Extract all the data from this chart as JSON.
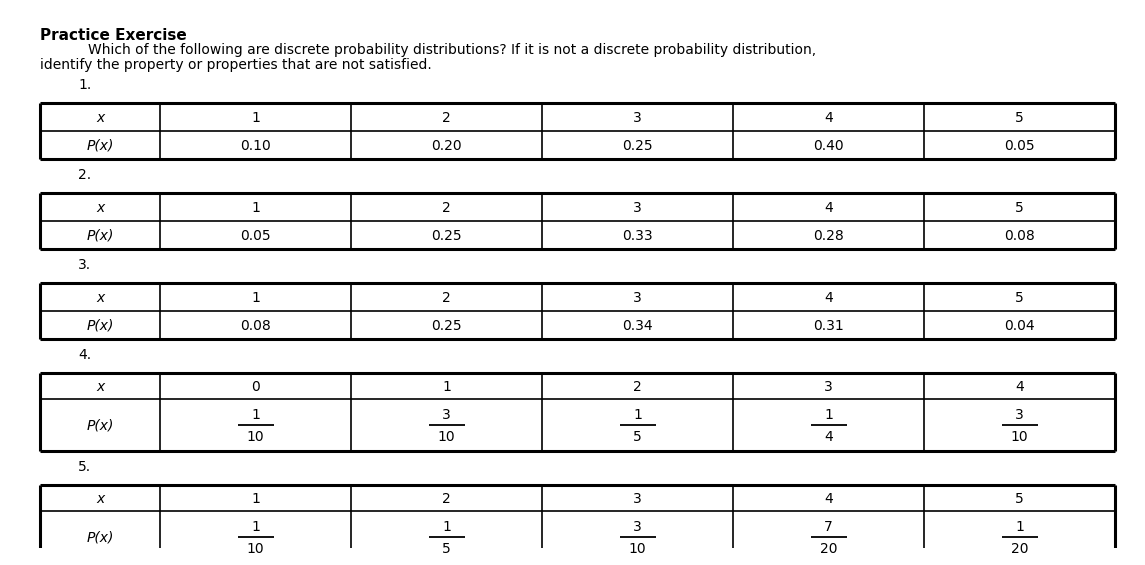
{
  "title": "Practice Exercise",
  "subtitle_line1": "Which of the following are discrete probability distributions? If it is not a discrete probability distribution,",
  "subtitle_line2": "identify the property or properties that are not satisfied.",
  "background_color": "#ffffff",
  "tables": [
    {
      "number": "1.",
      "x_values": [
        "1",
        "2",
        "3",
        "4",
        "5"
      ],
      "p_label": "P(x)",
      "p_values": [
        "0.10",
        "0.20",
        "0.25",
        "0.40",
        "0.05"
      ],
      "use_fractions": false
    },
    {
      "number": "2.",
      "x_values": [
        "1",
        "2",
        "3",
        "4",
        "5"
      ],
      "p_label": "P(x)",
      "p_values": [
        "0.05",
        "0.25",
        "0.33",
        "0.28",
        "0.08"
      ],
      "use_fractions": false
    },
    {
      "number": "3.",
      "x_values": [
        "1",
        "2",
        "3",
        "4",
        "5"
      ],
      "p_label": "P(x)",
      "p_values": [
        "0.08",
        "0.25",
        "0.34",
        "0.31",
        "0.04"
      ],
      "use_fractions": false
    },
    {
      "number": "4.",
      "x_values": [
        "0",
        "1",
        "2",
        "3",
        "4"
      ],
      "p_label": "P(x)",
      "p_numerators": [
        "1",
        "3",
        "1",
        "1",
        "3"
      ],
      "p_denominators": [
        "10",
        "10",
        "5",
        "4",
        "10"
      ],
      "use_fractions": true
    },
    {
      "number": "5.",
      "x_values": [
        "1",
        "2",
        "3",
        "4",
        "5"
      ],
      "p_label": "P(x)",
      "p_numerators": [
        "1",
        "1",
        "3",
        "7",
        "1"
      ],
      "p_denominators": [
        "10",
        "5",
        "10",
        "20",
        "20"
      ],
      "use_fractions": true
    }
  ]
}
